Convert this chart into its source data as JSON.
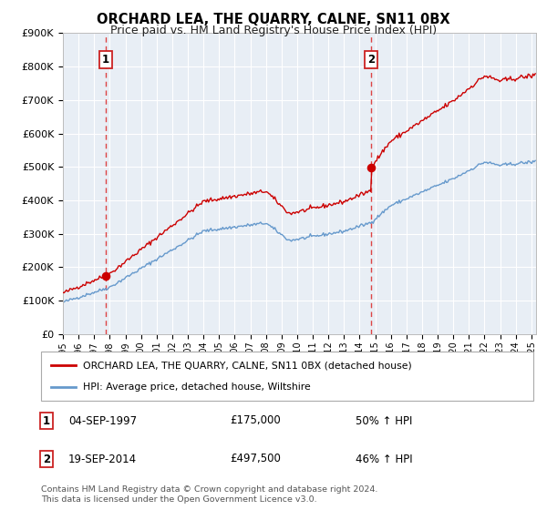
{
  "title": "ORCHARD LEA, THE QUARRY, CALNE, SN11 0BX",
  "subtitle": "Price paid vs. HM Land Registry's House Price Index (HPI)",
  "legend_line1": "ORCHARD LEA, THE QUARRY, CALNE, SN11 0BX (detached house)",
  "legend_line2": "HPI: Average price, detached house, Wiltshire",
  "sale1_label": "1",
  "sale1_date": "04-SEP-1997",
  "sale1_price": "£175,000",
  "sale1_hpi": "50% ↑ HPI",
  "sale1_year": 1997.72,
  "sale1_value": 175000,
  "sale2_label": "2",
  "sale2_date": "19-SEP-2014",
  "sale2_price": "£497,500",
  "sale2_hpi": "46% ↑ HPI",
  "sale2_year": 2014.72,
  "sale2_value": 497500,
  "red_line_color": "#cc0000",
  "blue_line_color": "#6699cc",
  "dashed_line_color": "#dd4444",
  "plot_bg_color": "#e8eef5",
  "footnote": "Contains HM Land Registry data © Crown copyright and database right 2024.\nThis data is licensed under the Open Government Licence v3.0.",
  "ylim": [
    0,
    900000
  ],
  "xlim": [
    1995.0,
    2025.3
  ],
  "yticks": [
    0,
    100000,
    200000,
    300000,
    400000,
    500000,
    600000,
    700000,
    800000,
    900000
  ],
  "ytick_labels": [
    "£0",
    "£100K",
    "£200K",
    "£300K",
    "£400K",
    "£500K",
    "£600K",
    "£700K",
    "£800K",
    "£900K"
  ]
}
